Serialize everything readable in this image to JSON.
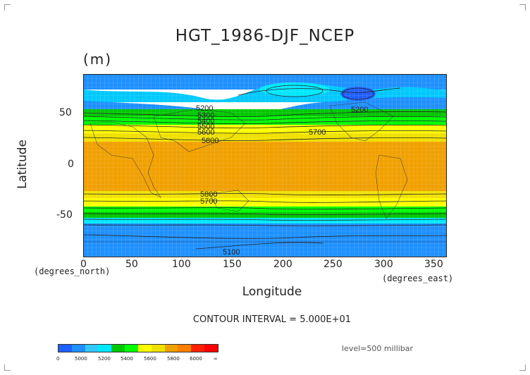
{
  "title": "HGT_1986-DJF_NCEP",
  "units": "(m)",
  "axes": {
    "ylabel": "Latitude",
    "xlabel": "Longitude",
    "x_unit": "(degrees_east)",
    "y_unit": "(degrees_north)",
    "y_ticks": [
      "50",
      "0",
      "-50"
    ],
    "x_ticks": [
      "0",
      "50",
      "100",
      "150",
      "200",
      "250",
      "300",
      "350"
    ]
  },
  "contour_interval": "CONTOUR INTERVAL = 5.000E+01",
  "level": "level=500 millibar",
  "colorbar": {
    "labels": [
      "0",
      "5000",
      "5200",
      "5400",
      "5600",
      "5800",
      "6000",
      "∞"
    ],
    "colors": [
      "#1e5fff",
      "#1e90ff",
      "#32c8ff",
      "#00e8ff",
      "#00c800",
      "#00ff00",
      "#ffff00",
      "#f0e000",
      "#f0a000",
      "#ff7f00",
      "#ff2000",
      "#ff0000"
    ]
  },
  "contour_labels": [
    "5200",
    "5300",
    "5400",
    "5500",
    "5600",
    "5700",
    "5800",
    "5100",
    "5200",
    "5700",
    "5800"
  ],
  "chart_data": {
    "type": "heatmap",
    "title": "HGT_1986-DJF_NCEP",
    "units": "(m)",
    "xlabel": "Longitude",
    "ylabel": "Latitude",
    "xlim": [
      0,
      360
    ],
    "ylim": [
      -90,
      90
    ],
    "x_ticks": [
      0,
      50,
      100,
      150,
      200,
      250,
      300,
      350
    ],
    "y_ticks": [
      -50,
      0,
      50
    ],
    "color_levels": [
      0,
      5000,
      5200,
      5400,
      5600,
      5800,
      6000
    ],
    "latitude_bands": [
      {
        "lat_from": 90,
        "lat_to": 75,
        "approx_value": 5150
      },
      {
        "lat_from": 75,
        "lat_to": 58,
        "approx_value": 5300
      },
      {
        "lat_from": 58,
        "lat_to": 50,
        "approx_value": 5450
      },
      {
        "lat_from": 50,
        "lat_to": 43,
        "approx_value": 5550
      },
      {
        "lat_from": 43,
        "lat_to": 30,
        "approx_value": 5700
      },
      {
        "lat_from": 30,
        "lat_to": 23,
        "approx_value": 5780
      },
      {
        "lat_from": 23,
        "lat_to": -23,
        "approx_value": 5870
      },
      {
        "lat_from": -23,
        "lat_to": -30,
        "approx_value": 5780
      },
      {
        "lat_from": -30,
        "lat_to": -38,
        "approx_value": 5700
      },
      {
        "lat_from": -38,
        "lat_to": -45,
        "approx_value": 5600
      },
      {
        "lat_from": -45,
        "lat_to": -52,
        "approx_value": 5480
      },
      {
        "lat_from": -52,
        "lat_to": -90,
        "approx_value": 5250
      }
    ],
    "annotations": [
      "CONTOUR INTERVAL = 5.000E+01",
      "level=500 millibar"
    ]
  }
}
